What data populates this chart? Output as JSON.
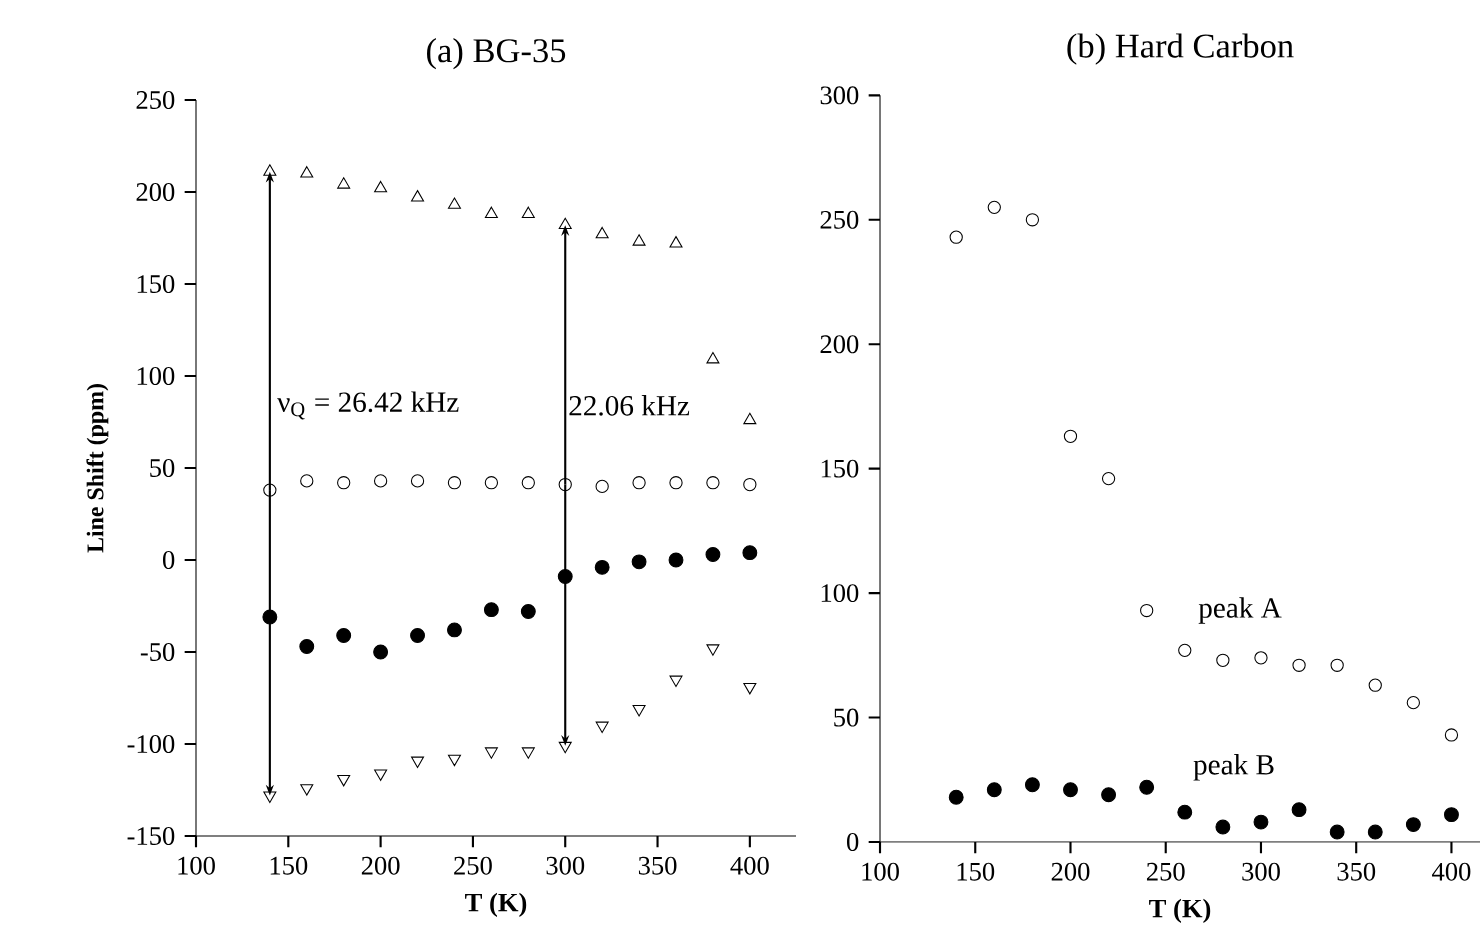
{
  "chart_data": [
    {
      "type": "scatter",
      "title": "(a) BG-35",
      "xlabel": "T (K)",
      "ylabel": "Line Shift (ppm)",
      "x": [
        140,
        160,
        180,
        200,
        220,
        240,
        260,
        280,
        300,
        320,
        340,
        360,
        380,
        400
      ],
      "series": [
        {
          "color": "#000000",
          "marker": "triangle",
          "values": [
            211,
            210,
            204,
            202,
            197,
            193,
            188,
            188,
            182,
            177,
            173,
            172,
            109,
            76
          ]
        },
        {
          "color": "#000000",
          "marker": "circle",
          "values": [
            38,
            43,
            42,
            43,
            43,
            42,
            42,
            42,
            41,
            40,
            42,
            42,
            42,
            41
          ]
        },
        {
          "color": "#000000",
          "marker": "circle_filled",
          "values": [
            -31,
            -47,
            -41,
            -50,
            -41,
            -38,
            -27,
            -28,
            -9,
            -4,
            -1,
            0,
            3,
            4
          ]
        },
        {
          "color": "#000000",
          "marker": "triangle_down",
          "values": [
            -128,
            -124,
            -119,
            -116,
            -109,
            -108,
            -104,
            -104,
            -101,
            -90,
            -81,
            -65,
            -48,
            -69
          ]
        }
      ],
      "xlim": [
        100,
        425
      ],
      "ylim": [
        -150,
        250
      ],
      "xticks": [
        100,
        150,
        200,
        250,
        300,
        350,
        400
      ],
      "yticks": [
        -150,
        -100,
        -50,
        0,
        50,
        100,
        150,
        200,
        250
      ],
      "annotations": [
        "ν$_{Q}$ = 26.42 kHz",
        "22.06 kHz"
      ]
    },
    {
      "type": "scatter",
      "title": "(b) Hard Carbon",
      "xlabel": "T (K)",
      "x": [
        140,
        160,
        180,
        200,
        220,
        240,
        260,
        280,
        300,
        320,
        340,
        360,
        380,
        400
      ],
      "series": [
        {
          "color": "#000000",
          "marker": "circle",
          "values": [
            243,
            255,
            250,
            163,
            146,
            93,
            77,
            73,
            74,
            71,
            71,
            63,
            56,
            43
          ]
        },
        {
          "color": "#000000",
          "marker": "circle_filled",
          "values": [
            18,
            21,
            23,
            21,
            19,
            22,
            12,
            6,
            8,
            13,
            4,
            4,
            7,
            11
          ]
        }
      ],
      "xlim": [
        100,
        415
      ],
      "ylim": [
        0,
        300
      ],
      "xticks": [
        100,
        150,
        200,
        250,
        300,
        350,
        400
      ],
      "yticks": [
        0,
        50,
        100,
        150,
        200,
        250,
        300
      ],
      "annotations": [
        "peak A",
        "peak B"
      ]
    }
  ]
}
